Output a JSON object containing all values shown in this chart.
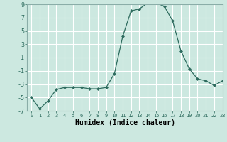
{
  "x": [
    0,
    1,
    2,
    3,
    4,
    5,
    6,
    7,
    8,
    9,
    10,
    11,
    12,
    13,
    14,
    15,
    16,
    17,
    18,
    19,
    20,
    21,
    22,
    23
  ],
  "y": [
    -5.0,
    -6.7,
    -5.5,
    -3.8,
    -3.5,
    -3.5,
    -3.5,
    -3.7,
    -3.7,
    -3.5,
    -1.4,
    4.2,
    8.0,
    8.3,
    9.2,
    9.2,
    8.7,
    6.5,
    2.0,
    -0.7,
    -2.2,
    -2.5,
    -3.2,
    -2.5
  ],
  "xlim": [
    -0.5,
    23
  ],
  "ylim": [
    -7,
    9
  ],
  "yticks": [
    -7,
    -5,
    -3,
    -1,
    1,
    3,
    5,
    7,
    9
  ],
  "ytick_labels": [
    "-7",
    "-5",
    "-3",
    "-1",
    "1",
    "3",
    "5",
    "7",
    "9"
  ],
  "xtick_labels": [
    "0",
    "1",
    "2",
    "3",
    "4",
    "5",
    "6",
    "7",
    "8",
    "9",
    "10",
    "11",
    "12",
    "13",
    "14",
    "15",
    "16",
    "17",
    "18",
    "19",
    "20",
    "21",
    "22",
    "23"
  ],
  "xlabel": "Humidex (Indice chaleur)",
  "line_color": "#2d6b5e",
  "marker": "D",
  "marker_size": 2,
  "bg_color": "#cce8e0",
  "grid_color": "#ffffff",
  "spine_color": "#8aada8"
}
